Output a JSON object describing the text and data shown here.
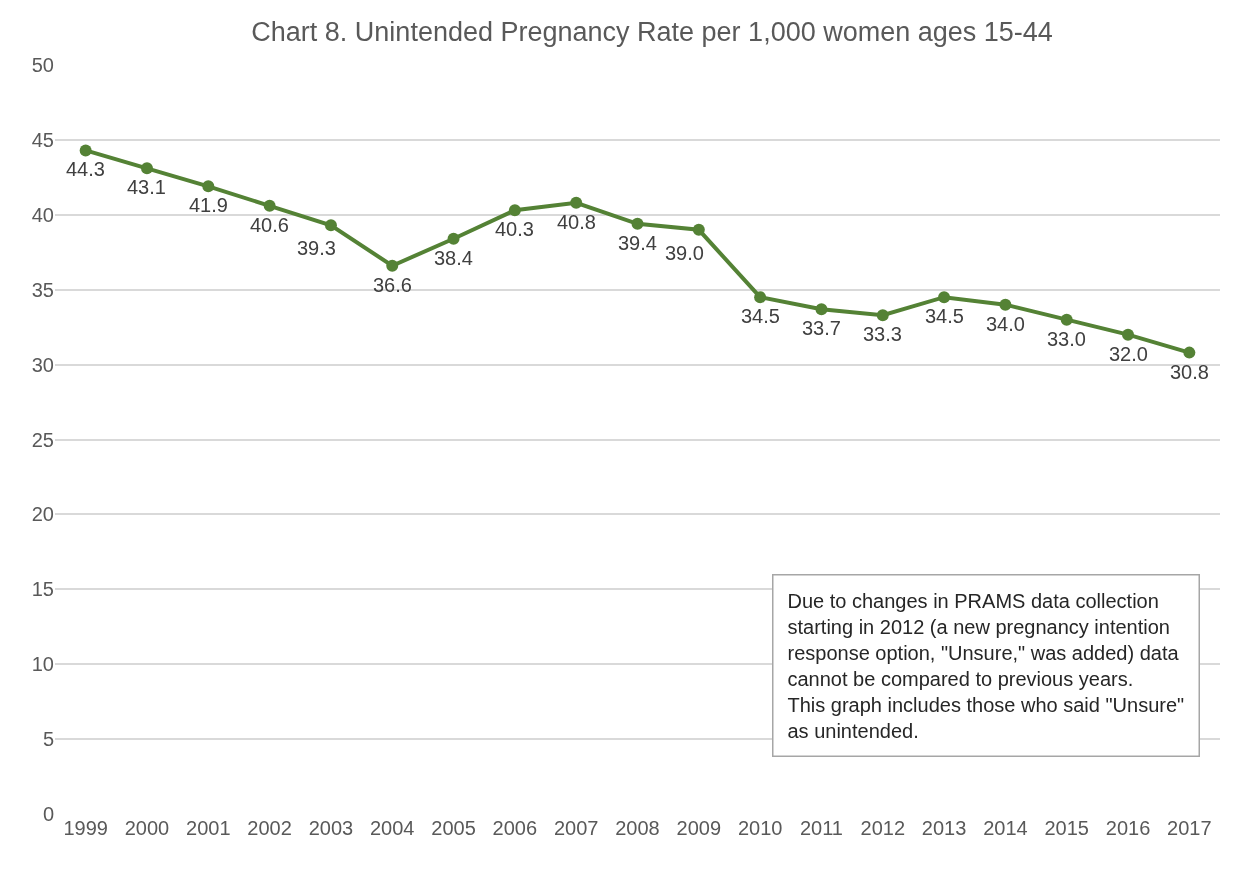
{
  "chart_data": {
    "type": "line",
    "title": "Chart 8. Unintended Pregnancy Rate per 1,000 women ages 15-44",
    "categories": [
      "1999",
      "2000",
      "2001",
      "2002",
      "2003",
      "2004",
      "2005",
      "2006",
      "2007",
      "2008",
      "2009",
      "2010",
      "2011",
      "2012",
      "2013",
      "2014",
      "2015",
      "2016",
      "2017"
    ],
    "series": [
      {
        "color": "#548235",
        "values": [
          44.3,
          43.1,
          41.9,
          40.6,
          39.3,
          36.6,
          38.4,
          40.3,
          40.8,
          39.4,
          39.0,
          34.5,
          33.7,
          33.3,
          34.5,
          34.0,
          33.0,
          32.0,
          30.8
        ],
        "value_labels": [
          "44.3",
          "43.1",
          "41.9",
          "40.6",
          "39.3",
          "36.6",
          "38.4",
          "40.3",
          "40.8",
          "39.4",
          "39.0",
          "34.5",
          "33.7",
          "33.3",
          "34.5",
          "34.0",
          "33.0",
          "32.0",
          "30.8"
        ]
      }
    ],
    "ylim": [
      0,
      50
    ],
    "yticks": [
      0,
      5,
      10,
      15,
      20,
      25,
      30,
      35,
      40,
      45,
      50
    ],
    "grid": "y",
    "legend": false,
    "marker": "circle",
    "line_style": "solid",
    "annotations": [
      "Due to changes in PRAMS data collection\nstarting in 2012 (a new pregnancy intention\nresponse option, \"Unsure,\" was added) data\ncannot be compared to previous years.\nThis graph includes those who said \"Unsure\"\nas unintended."
    ]
  }
}
